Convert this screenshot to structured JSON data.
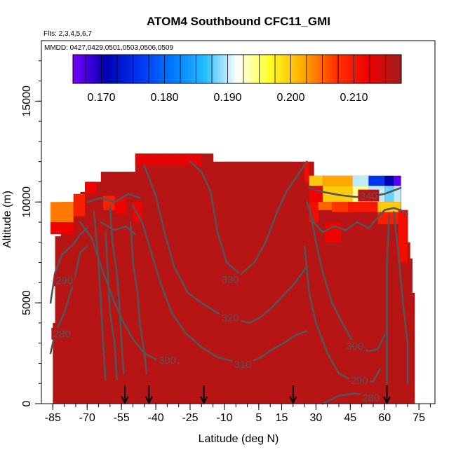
{
  "chart_data": {
    "type": "heatmap",
    "title": "ATOM4 Southbound CFC11_GMI",
    "subtitle_flights": "Flts: 2,3,4,5,6,7",
    "subtitle_dates": "MMDD: 0427,0429,0501,0503,0506,0509",
    "xlabel": "Latitude (deg N)",
    "ylabel": "Altitude (m)",
    "xlim": [
      -90,
      82
    ],
    "ylim": [
      0,
      18000
    ],
    "x_ticks": [
      -85,
      -70,
      -55,
      -40,
      -25,
      -10,
      5,
      15,
      30,
      45,
      60,
      75
    ],
    "x_tick_labels": [
      "-85",
      "-70",
      "-55",
      "-40",
      "-25",
      "-10",
      "5",
      "15",
      "30",
      "45",
      "60",
      "75"
    ],
    "y_ticks": [
      0,
      5000,
      10000,
      15000
    ],
    "y_tick_labels": [
      "0",
      "5000",
      "10000",
      "15000"
    ],
    "colorbar": {
      "min": 0.1655,
      "max": 0.2175,
      "ticks": [
        0.17,
        0.18,
        0.19,
        0.2,
        0.21
      ],
      "tick_labels": [
        "0.170",
        "0.180",
        "0.190",
        "0.200",
        "0.210"
      ],
      "colors": [
        "#7700ff",
        "#0000b0",
        "#0033ee",
        "#0077ff",
        "#22bbff",
        "#ffffff",
        "#ffff22",
        "#ffaa00",
        "#ff3300",
        "#ee0000",
        "#a01e1e"
      ]
    },
    "field": {
      "background_value": 0.216,
      "columns": [
        {
          "lat": -85,
          "top": 4000
        },
        {
          "lat": -84,
          "top": 8300
        },
        {
          "lat": -81.5,
          "top": 10000
        },
        {
          "lat": -79,
          "top": 10000
        },
        {
          "lat": -76,
          "top": 10000
        },
        {
          "lat": -73,
          "top": 10500
        },
        {
          "lat": -70,
          "top": 11000
        },
        {
          "lat": -67,
          "top": 11000
        },
        {
          "lat": -64,
          "top": 11500
        },
        {
          "lat": -61,
          "top": 11500
        },
        {
          "lat": -58,
          "top": 11500
        },
        {
          "lat": -55,
          "top": 11500
        },
        {
          "lat": -52,
          "top": 11500
        },
        {
          "lat": -49,
          "top": 12400
        },
        {
          "lat": -45,
          "top": 12400
        },
        {
          "lat": -40,
          "top": 12400
        },
        {
          "lat": -35,
          "top": 12400
        },
        {
          "lat": -30,
          "top": 12400
        },
        {
          "lat": -25,
          "top": 12400
        },
        {
          "lat": -20,
          "top": 12400
        },
        {
          "lat": -15,
          "top": 12000
        },
        {
          "lat": -10,
          "top": 12000
        },
        {
          "lat": -5,
          "top": 12000
        },
        {
          "lat": 0,
          "top": 12000
        },
        {
          "lat": 5,
          "top": 12000
        },
        {
          "lat": 10,
          "top": 12000
        },
        {
          "lat": 15,
          "top": 12000
        },
        {
          "lat": 20,
          "top": 12000
        },
        {
          "lat": 25,
          "top": 12000
        },
        {
          "lat": 29,
          "top": 11300
        },
        {
          "lat": 35,
          "top": 11300
        },
        {
          "lat": 41,
          "top": 11300
        },
        {
          "lat": 47,
          "top": 11300
        },
        {
          "lat": 53,
          "top": 11300
        },
        {
          "lat": 59,
          "top": 11300
        },
        {
          "lat": 63,
          "top": 11300
        },
        {
          "lat": 66,
          "top": 11300
        },
        {
          "lat": 67,
          "top": 9600
        },
        {
          "lat": 70,
          "top": 8000
        },
        {
          "lat": 71,
          "top": 7200
        },
        {
          "lat": 72,
          "top": 5500
        }
      ],
      "patches": [
        {
          "lat0": -86,
          "lat1": -76,
          "alt0": 9000,
          "alt1": 10000,
          "value": 0.204
        },
        {
          "lat0": -86,
          "lat1": -76,
          "alt0": 8400,
          "alt1": 9000,
          "value": 0.212
        },
        {
          "lat0": -76,
          "lat1": -71,
          "alt0": 9300,
          "alt1": 10400,
          "value": 0.209
        },
        {
          "lat0": -71,
          "lat1": -66,
          "alt0": 10400,
          "alt1": 11000,
          "value": 0.212
        },
        {
          "lat0": -63,
          "lat1": -58,
          "alt0": 9600,
          "alt1": 10300,
          "value": 0.209
        },
        {
          "lat0": -58,
          "lat1": -53,
          "alt0": 9400,
          "alt1": 10200,
          "value": 0.212
        },
        {
          "lat0": -50,
          "lat1": -46,
          "alt0": 9000,
          "alt1": 10000,
          "value": 0.212
        },
        {
          "lat0": -49,
          "lat1": -20,
          "alt0": 11800,
          "alt1": 12400,
          "value": 0.213
        },
        {
          "lat0": 25,
          "lat1": 27,
          "alt0": 11000,
          "alt1": 12000,
          "value": 0.211
        },
        {
          "lat0": 27,
          "lat1": 33,
          "alt0": 10800,
          "alt1": 11300,
          "value": 0.2
        },
        {
          "lat0": 27,
          "lat1": 33,
          "alt0": 10000,
          "alt1": 10800,
          "value": 0.212
        },
        {
          "lat0": 33,
          "lat1": 46,
          "alt0": 10800,
          "alt1": 11300,
          "value": 0.202
        },
        {
          "lat0": 33,
          "lat1": 46,
          "alt0": 10000,
          "alt1": 10800,
          "value": 0.2
        },
        {
          "lat0": 46,
          "lat1": 53,
          "alt0": 10800,
          "alt1": 11300,
          "value": 0.19
        },
        {
          "lat0": 46,
          "lat1": 53,
          "alt0": 10000,
          "alt1": 10800,
          "value": 0.194
        },
        {
          "lat0": 53,
          "lat1": 60,
          "alt0": 10800,
          "alt1": 11300,
          "value": 0.176
        },
        {
          "lat0": 53,
          "lat1": 60,
          "alt0": 10000,
          "alt1": 10800,
          "value": 0.19
        },
        {
          "lat0": 60,
          "lat1": 64,
          "alt0": 10800,
          "alt1": 11300,
          "value": 0.171
        },
        {
          "lat0": 60,
          "lat1": 64,
          "alt0": 10000,
          "alt1": 10800,
          "value": 0.188
        },
        {
          "lat0": 64,
          "lat1": 67,
          "alt0": 10800,
          "alt1": 11300,
          "value": 0.167
        },
        {
          "lat0": 64,
          "lat1": 67,
          "alt0": 10000,
          "alt1": 10800,
          "value": 0.19
        },
        {
          "lat0": 27,
          "lat1": 31,
          "alt0": 9000,
          "alt1": 10000,
          "value": 0.211
        },
        {
          "lat0": 31,
          "lat1": 37,
          "alt0": 9600,
          "alt1": 10000,
          "value": 0.205
        },
        {
          "lat0": 37,
          "lat1": 44,
          "alt0": 9500,
          "alt1": 10000,
          "value": 0.207
        },
        {
          "lat0": 44,
          "lat1": 57,
          "alt0": 9500,
          "alt1": 10000,
          "value": 0.21
        },
        {
          "lat0": 57,
          "lat1": 67,
          "alt0": 9500,
          "alt1": 10000,
          "value": 0.2
        },
        {
          "lat0": 57,
          "lat1": 66,
          "alt0": 8900,
          "alt1": 9500,
          "value": 0.209
        },
        {
          "lat0": 34,
          "lat1": 41,
          "alt0": 8000,
          "alt1": 9000,
          "value": 0.212
        },
        {
          "lat0": 66,
          "lat1": 70,
          "alt0": 7000,
          "alt1": 9600,
          "value": 0.211
        }
      ]
    },
    "contours": [
      {
        "label": "280",
        "label_at": [
          -81,
          3450
        ],
        "points": [
          [
            -86,
            2500
          ],
          [
            -84,
            3500
          ],
          [
            -80,
            4500
          ],
          [
            -76,
            6000
          ],
          [
            -73,
            7500
          ],
          [
            -70,
            7800
          ]
        ]
      },
      {
        "label": "290",
        "label_at": [
          -80,
          6100
        ],
        "points": [
          [
            -86,
            5000
          ],
          [
            -84,
            6500
          ],
          [
            -81,
            7400
          ],
          [
            -76,
            7900
          ],
          [
            -73,
            8400
          ],
          [
            -70,
            8700
          ]
        ]
      },
      {
        "label": "300",
        "label_at": [
          -35,
          2150
        ],
        "points": [
          [
            -73,
            9000
          ],
          [
            -68,
            8200
          ],
          [
            -63,
            6500
          ],
          [
            -58,
            5000
          ],
          [
            -54,
            4000
          ],
          [
            -50,
            3200
          ],
          [
            -45,
            2500
          ],
          [
            -40,
            2200
          ],
          [
            -35,
            2100
          ],
          [
            -30,
            2000
          ]
        ]
      },
      {
        "label": "310",
        "label_at": [
          -2,
          1950
        ],
        "points": [
          [
            -50,
            9800
          ],
          [
            -46,
            9000
          ],
          [
            -42,
            7500
          ],
          [
            -38,
            6000
          ],
          [
            -33,
            4500
          ],
          [
            -27,
            3500
          ],
          [
            -20,
            2800
          ],
          [
            -13,
            2300
          ],
          [
            -6,
            2100
          ],
          [
            0,
            2000
          ],
          [
            6,
            2300
          ],
          [
            11,
            2700
          ],
          [
            16,
            3000
          ],
          [
            21,
            3400
          ],
          [
            26,
            3600
          ]
        ]
      },
      {
        "label": "320",
        "label_at": [
          -7.5,
          4250
        ],
        "points": [
          [
            -45,
            11800
          ],
          [
            -40,
            10300
          ],
          [
            -36,
            8400
          ],
          [
            -32,
            6800
          ],
          [
            -26,
            5500
          ],
          [
            -20,
            5000
          ],
          [
            -13,
            4500
          ],
          [
            -6,
            4200
          ],
          [
            1,
            4000
          ],
          [
            6,
            4300
          ],
          [
            11,
            4800
          ],
          [
            16,
            5400
          ],
          [
            21,
            6000
          ],
          [
            26,
            6800
          ]
        ]
      },
      {
        "label": "330",
        "label_at": [
          -7.5,
          6150
        ],
        "points": [
          [
            -25,
            12000
          ],
          [
            -20,
            11500
          ],
          [
            -16,
            10500
          ],
          [
            -13,
            8500
          ],
          [
            -9,
            7000
          ],
          [
            -3,
            6400
          ],
          [
            3,
            7000
          ],
          [
            8,
            8000
          ],
          [
            13,
            9500
          ],
          [
            17,
            10500
          ]
        ]
      },
      {
        "label": "340",
        "label_at": [
          53,
          10300
        ],
        "points": [
          [
            27,
            10700
          ],
          [
            33,
            10500
          ],
          [
            40,
            10350
          ],
          [
            47,
            10250
          ],
          [
            53,
            10250
          ],
          [
            60,
            10400
          ],
          [
            67,
            10700
          ]
        ]
      },
      {
        "label": "300",
        "label_at": [
          47,
          2850
        ],
        "points": [
          [
            27,
            9800
          ],
          [
            30,
            8000
          ],
          [
            33,
            6500
          ],
          [
            37,
            5000
          ],
          [
            42,
            3900
          ],
          [
            47,
            2900
          ],
          [
            53,
            2600
          ],
          [
            57,
            2700
          ],
          [
            60,
            3400
          ]
        ]
      },
      {
        "label": "290",
        "label_at": [
          49,
          1150
        ],
        "points": [
          [
            25,
            7800
          ],
          [
            27,
            5500
          ],
          [
            30,
            4000
          ],
          [
            35,
            2500
          ],
          [
            40,
            1500
          ],
          [
            45,
            1200
          ],
          [
            50,
            1100
          ],
          [
            55,
            1100
          ],
          [
            58,
            1700
          ]
        ]
      },
      {
        "label": "280",
        "label_at": [
          54,
          300
        ],
        "points": [
          [
            33,
            0
          ],
          [
            40,
            400
          ],
          [
            47,
            500
          ],
          [
            53,
            400
          ],
          [
            57,
            500
          ]
        ]
      },
      {
        "label": "",
        "label_at": null,
        "points": [
          [
            -67,
            9500
          ],
          [
            -65,
            7000
          ],
          [
            -64,
            5000
          ],
          [
            -63,
            3000
          ],
          [
            -62,
            1200
          ]
        ]
      },
      {
        "label": "",
        "label_at": null,
        "points": [
          [
            -60,
            9800
          ],
          [
            -59,
            8000
          ],
          [
            -57,
            6500
          ],
          [
            -56,
            5000
          ],
          [
            -55,
            3000
          ],
          [
            -54,
            1500
          ]
        ]
      },
      {
        "label": "",
        "label_at": null,
        "points": [
          [
            -51,
            9000
          ],
          [
            -50,
            7000
          ],
          [
            -48,
            5500
          ],
          [
            -47,
            4000
          ],
          [
            -45,
            2500
          ],
          [
            -44,
            1500
          ]
        ]
      },
      {
        "label": "",
        "label_at": null,
        "points": [
          [
            -62,
            8500
          ],
          [
            -61,
            6500
          ],
          [
            -60,
            4500
          ],
          [
            -58,
            3000
          ],
          [
            -57,
            1200
          ]
        ]
      },
      {
        "label": "",
        "label_at": null,
        "points": [
          [
            17,
            10500
          ],
          [
            20,
            11000
          ],
          [
            23,
            11500
          ],
          [
            26,
            12000
          ]
        ]
      },
      {
        "label": "",
        "label_at": null,
        "points": [
          [
            26,
            10000
          ],
          [
            29,
            9000
          ],
          [
            33,
            8500
          ],
          [
            38,
            8800
          ],
          [
            43,
            8600
          ],
          [
            48,
            9000
          ],
          [
            53,
            8700
          ],
          [
            56,
            9100
          ]
        ]
      },
      {
        "label": "",
        "label_at": null,
        "points": [
          [
            56,
            9100
          ],
          [
            60,
            9600
          ],
          [
            64,
            9700
          ],
          [
            67,
            9600
          ],
          [
            70,
            9400
          ]
        ]
      },
      {
        "label": "",
        "label_at": null,
        "points": [
          [
            62,
            9300
          ],
          [
            61,
            7000
          ],
          [
            61,
            5000
          ],
          [
            61,
            3000
          ],
          [
            61,
            1000
          ]
        ]
      },
      {
        "label": "",
        "label_at": null,
        "points": [
          [
            64,
            9500
          ],
          [
            66,
            7500
          ],
          [
            68,
            5000
          ],
          [
            70,
            3000
          ],
          [
            70,
            1000
          ]
        ]
      },
      {
        "label": "",
        "label_at": null,
        "points": [
          [
            -70,
            10000
          ],
          [
            -64,
            10200
          ],
          [
            -58,
            10000
          ],
          [
            -52,
            10400
          ],
          [
            -47,
            10200
          ]
        ]
      },
      {
        "label": "",
        "label_at": null,
        "points": [
          [
            -64,
            9000
          ],
          [
            -58,
            8600
          ],
          [
            -53,
            8800
          ],
          [
            -49,
            8400
          ]
        ]
      }
    ],
    "markers": {
      "type": "down-arrow",
      "latitudes": [
        -53.5,
        -43,
        -19,
        20,
        61
      ],
      "alt_top": 800,
      "alt_bottom": 0
    }
  }
}
